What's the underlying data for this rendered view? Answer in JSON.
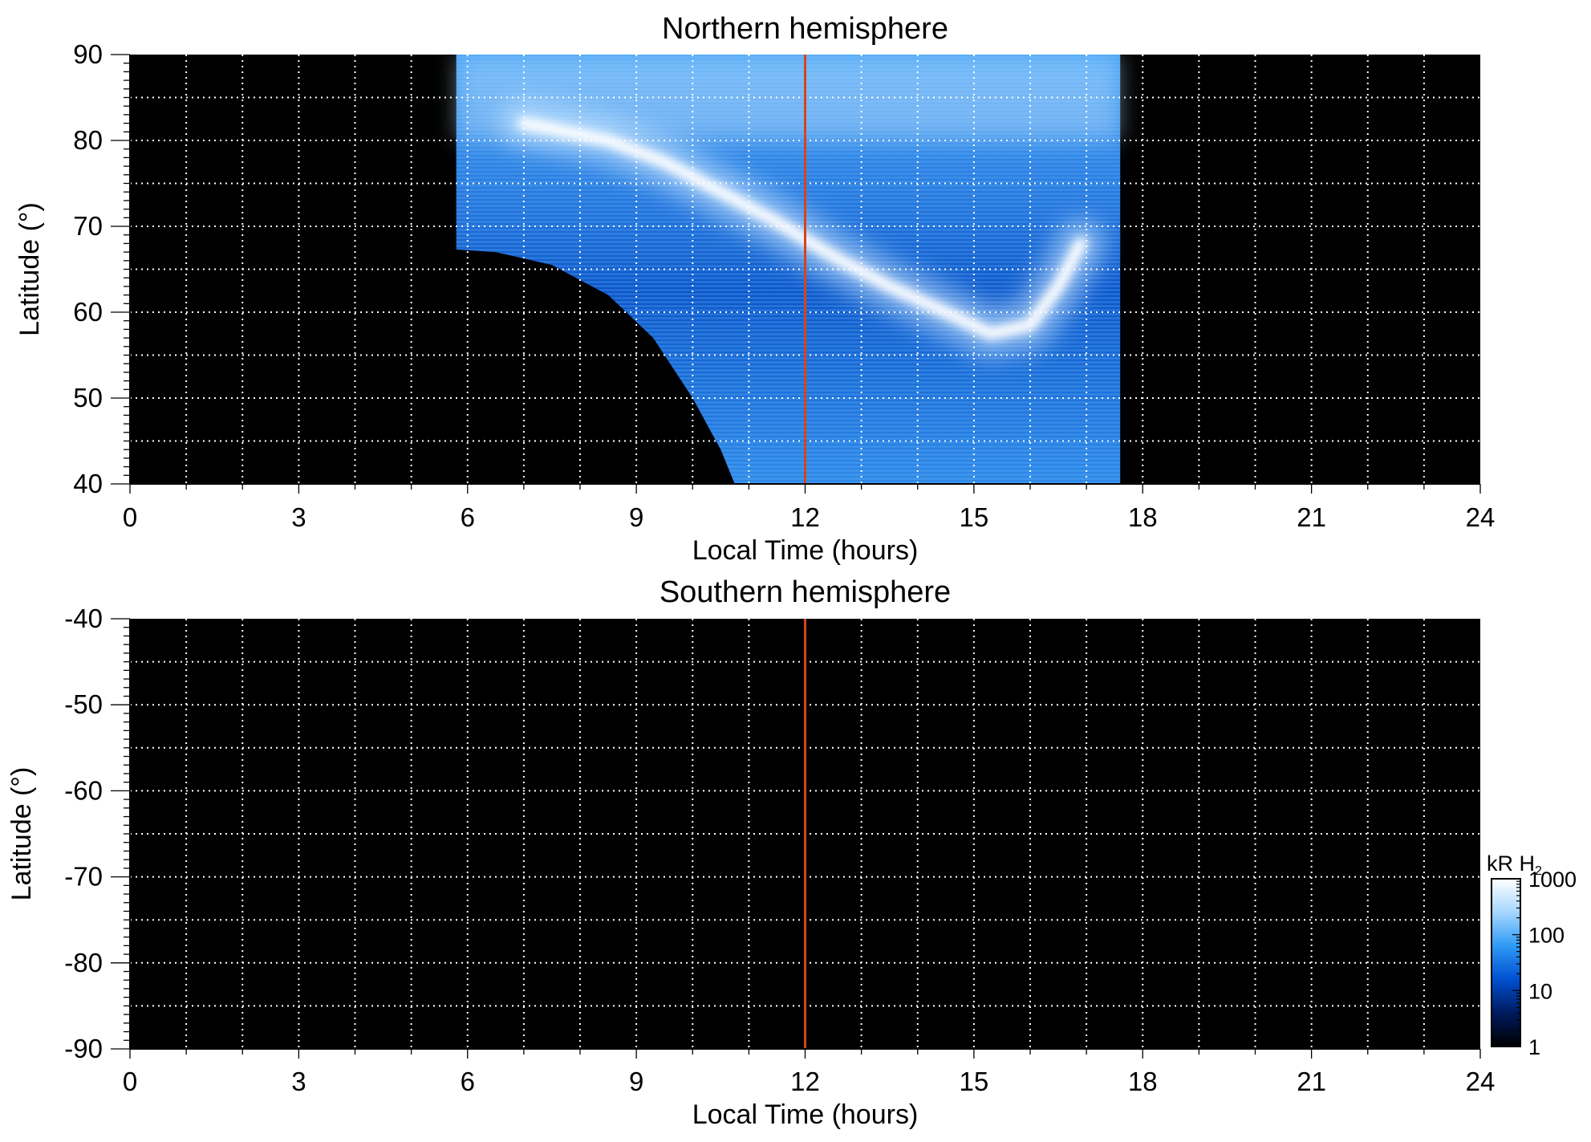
{
  "chart_data": [
    {
      "type": "heatmap",
      "title": "Northern hemisphere",
      "xlabel": "Local Time (hours)",
      "ylabel": "Latitude (°)",
      "xlim": [
        0,
        24
      ],
      "ylim": [
        40,
        90
      ],
      "xticks": [
        0,
        3,
        6,
        9,
        12,
        15,
        18,
        21,
        24
      ],
      "yticks": [
        40,
        50,
        60,
        70,
        80,
        90
      ],
      "grid": true,
      "reference_line": {
        "x": 12,
        "color": "#d9431a"
      },
      "coverage": {
        "lt_range": [
          5.8,
          17.6
        ],
        "lat_top": 90,
        "lower_edge": [
          {
            "lt": 5.8,
            "lat": 67.3
          },
          {
            "lt": 6.5,
            "lat": 67.0
          },
          {
            "lt": 7.5,
            "lat": 65.5
          },
          {
            "lt": 8.5,
            "lat": 62.0
          },
          {
            "lt": 9.3,
            "lat": 57.0
          },
          {
            "lt": 10.0,
            "lat": 50.0
          },
          {
            "lt": 10.5,
            "lat": 44.0
          },
          {
            "lt": 10.75,
            "lat": 40.0
          }
        ]
      },
      "auroral_oval": [
        {
          "lt": 7.0,
          "lat": 82.0
        },
        {
          "lt": 8.5,
          "lat": 80.0
        },
        {
          "lt": 9.5,
          "lat": 77.5
        },
        {
          "lt": 10.5,
          "lat": 74.0
        },
        {
          "lt": 11.5,
          "lat": 70.5
        },
        {
          "lt": 12.5,
          "lat": 66.5
        },
        {
          "lt": 13.5,
          "lat": 63.0
        },
        {
          "lt": 14.5,
          "lat": 60.0
        },
        {
          "lt": 15.3,
          "lat": 57.5
        },
        {
          "lt": 16.0,
          "lat": 58.5
        },
        {
          "lt": 16.5,
          "lat": 63.0
        },
        {
          "lt": 16.9,
          "lat": 68.0
        }
      ]
    },
    {
      "type": "heatmap",
      "title": "Southern hemisphere",
      "xlabel": "Local Time (hours)",
      "ylabel": "Latitude (°)",
      "xlim": [
        0,
        24
      ],
      "ylim": [
        -90,
        -40
      ],
      "xticks": [
        0,
        3,
        6,
        9,
        12,
        15,
        18,
        21,
        24
      ],
      "yticks": [
        -40,
        -50,
        -60,
        -70,
        -80,
        -90
      ],
      "grid": true,
      "reference_line": {
        "x": 12,
        "color": "#d9431a"
      },
      "coverage": null
    }
  ],
  "colorbar": {
    "label": "kR H",
    "label_sub": "2",
    "scale": "log",
    "range": [
      1,
      1000
    ],
    "ticks": [
      1,
      10,
      100,
      1000
    ],
    "tick_labels": [
      "1",
      "10",
      "100",
      "1000"
    ],
    "colors": [
      "#000000",
      "#001a5e",
      "#0050d0",
      "#2e9af5",
      "#a6d6ff",
      "#ffffff"
    ]
  },
  "colors": {
    "background": "#000000",
    "grid": "#ffffff",
    "reference_line": "#d9431a",
    "emission_low": "#0a55c8",
    "emission_mid": "#3c9cf2",
    "emission_high": "#ffffff"
  }
}
